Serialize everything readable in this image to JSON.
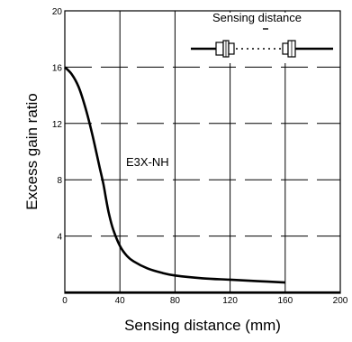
{
  "chart_data": {
    "type": "line",
    "title": "",
    "xlabel": "Sensing distance (mm)",
    "ylabel": "Excess gain ratio",
    "xlim": [
      0,
      200
    ],
    "ylim": [
      0,
      20
    ],
    "x_ticks": [
      "0",
      "40",
      "80",
      "120",
      "160",
      "200"
    ],
    "y_ticks": [
      "20",
      "16",
      "12",
      "8",
      "4"
    ],
    "grid": true,
    "legend": "none",
    "annotations": {
      "series_label": "E3X-NH",
      "inset_label": "Sensing distance"
    },
    "series": [
      {
        "name": "E3X-NH",
        "x": [
          0,
          5,
          10,
          15,
          20,
          25,
          28,
          30,
          32,
          35,
          40,
          45,
          50,
          60,
          70,
          80,
          100,
          120,
          140,
          160
        ],
        "y": [
          16,
          15.5,
          14.6,
          13.1,
          11.2,
          9.0,
          7.7,
          6.6,
          5.6,
          4.5,
          3.3,
          2.6,
          2.2,
          1.7,
          1.4,
          1.2,
          1.0,
          0.9,
          0.8,
          0.7
        ]
      }
    ]
  }
}
